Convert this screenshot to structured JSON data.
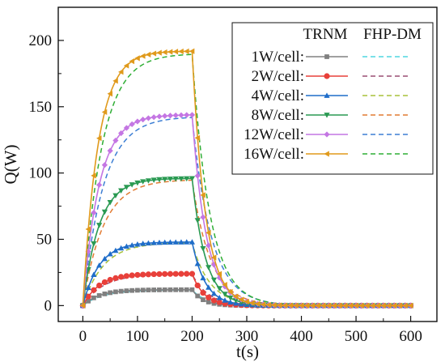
{
  "chart_data": {
    "type": "line",
    "xlabel": "t(s)",
    "ylabel": "Q(W)",
    "xlim": [
      -45,
      648
    ],
    "ylim": [
      -12,
      225
    ],
    "xticks": [
      0,
      100,
      200,
      300,
      400,
      500,
      600
    ],
    "yticks": [
      0,
      50,
      100,
      150,
      200
    ],
    "grid": false,
    "legend_position": "top-right",
    "legend_headers": [
      "TRNM",
      "FHP-DM"
    ],
    "heating_end_s": 200,
    "series": [
      {
        "name": "1W/cell:",
        "steady_W": 12,
        "tau_up_s": 30,
        "tau_down_s": 20,
        "marker": "square",
        "color": "#808080",
        "dm_color": "#4fd6e0"
      },
      {
        "name": "2W/cell:",
        "steady_W": 24,
        "tau_up_s": 30,
        "tau_down_s": 22,
        "marker": "circle",
        "color": "#e8403a",
        "dm_color": "#9a4f73"
      },
      {
        "name": "4W/cell:",
        "steady_W": 48,
        "tau_up_s": 30,
        "tau_down_s": 24,
        "marker": "triangle-up",
        "color": "#1f6dc9",
        "dm_color": "#a8c23a"
      },
      {
        "name": "8W/cell:",
        "steady_W": 96,
        "tau_up_s": 30,
        "tau_down_s": 25,
        "marker": "triangle-down",
        "color": "#2a9a52",
        "dm_color": "#e27b32"
      },
      {
        "name": "12W/cell:",
        "steady_W": 144,
        "tau_up_s": 30,
        "tau_down_s": 26,
        "marker": "diamond",
        "color": "#c476e3",
        "dm_color": "#3d7fd4"
      },
      {
        "name": "16W/cell:",
        "steady_W": 192,
        "tau_up_s": 28,
        "tau_down_s": 24,
        "marker": "triangle-left",
        "color": "#e09a1c",
        "dm_color": "#2fae35"
      }
    ]
  }
}
